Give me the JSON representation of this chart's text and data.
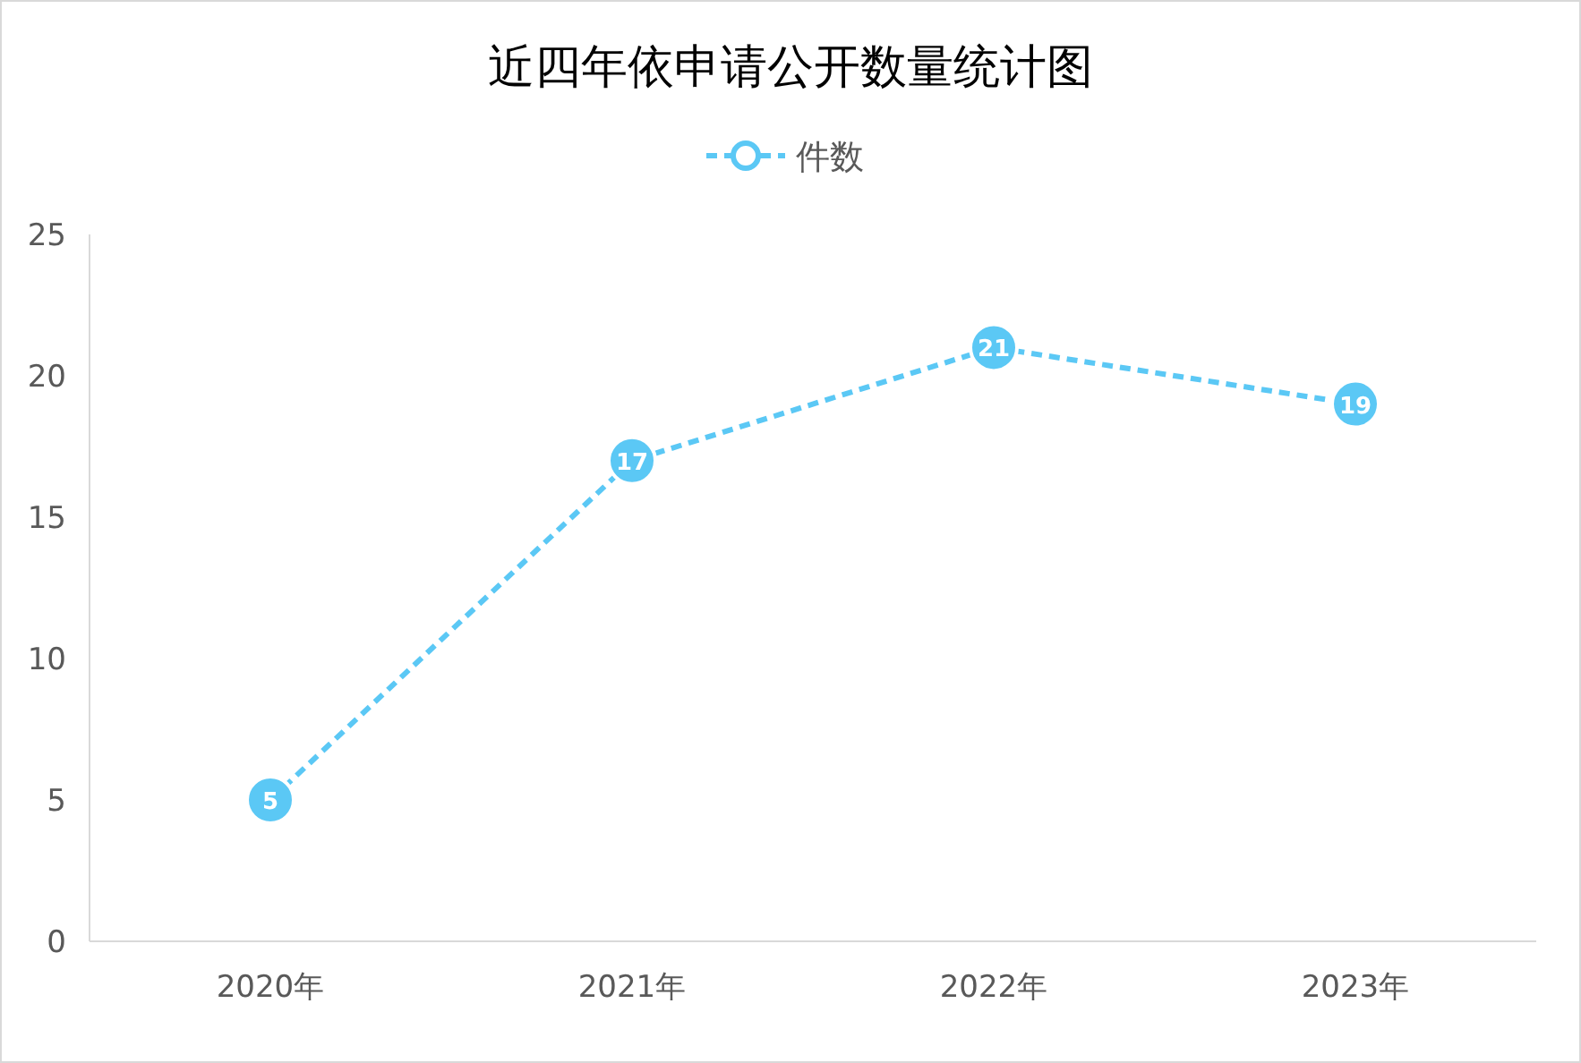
{
  "chart_data": {
    "type": "line",
    "title": "近四年依申请公开数量统计图",
    "categories": [
      "2020年",
      "2021年",
      "2022年",
      "2023年"
    ],
    "series": [
      {
        "name": "件数",
        "color": "#5bc8f5",
        "values": [
          5,
          17,
          21,
          19
        ]
      }
    ],
    "ylim": [
      0,
      25
    ],
    "yticks": [
      0,
      5,
      10,
      15,
      20,
      25
    ],
    "legend": "top",
    "marker": "circle",
    "line_style": "dashed",
    "data_labels": true
  }
}
